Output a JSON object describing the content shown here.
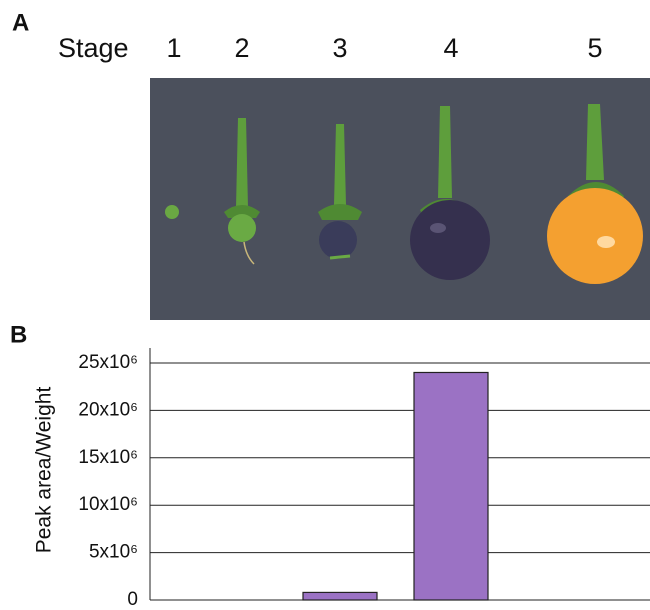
{
  "panel_a": {
    "label": "A",
    "stage_label": "Stage",
    "stages": [
      "1",
      "2",
      "3",
      "4",
      "5"
    ]
  },
  "chart_data": {
    "type": "bar",
    "panel_label": "B",
    "y_label": "Peak area/Weight",
    "categories": [
      null,
      null,
      null,
      null,
      null
    ],
    "values": [
      0,
      0,
      800000,
      24000000,
      0
    ],
    "color": "#9b72c4",
    "ylim": [
      0,
      25000000
    ],
    "yticks": [
      0,
      {
        "value": 5000000,
        "label": "5x10⁶"
      },
      {
        "value": 10000000,
        "label": "10x10⁶"
      },
      {
        "value": 15000000,
        "label": "15x10⁶"
      },
      {
        "value": 20000000,
        "label": "20x10⁶"
      },
      {
        "value": 25000000,
        "label": "25x10⁶"
      }
    ],
    "grid": true
  }
}
